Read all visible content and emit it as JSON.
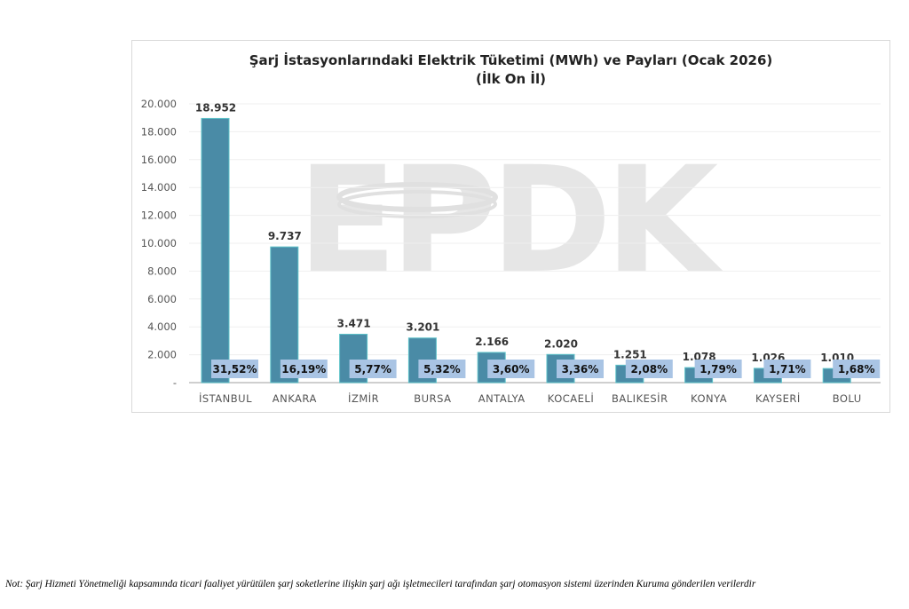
{
  "chart_data": {
    "type": "bar",
    "title": "Şarj İstasyonlarındaki Elektrik Tüketimi (MWh) ve Payları (Ocak 2026)",
    "subtitle": "(İlk On İl)",
    "xlabel": "",
    "ylabel": "",
    "ylim": [
      0,
      20000
    ],
    "yticks": [
      "-",
      "2.000",
      "4.000",
      "6.000",
      "8.000",
      "10.000",
      "12.000",
      "14.000",
      "16.000",
      "18.000",
      "20.000"
    ],
    "grid": true,
    "categories": [
      "İSTANBUL",
      "ANKARA",
      "İZMİR",
      "BURSA",
      "ANTALYA",
      "KOCAELİ",
      "BALIKESİR",
      "KONYA",
      "KAYSERİ",
      "BOLU"
    ],
    "values": [
      18952,
      9737,
      3471,
      3201,
      2166,
      2020,
      1251,
      1078,
      1026,
      1010
    ],
    "value_labels": [
      "18.952",
      "9.737",
      "3.471",
      "3.201",
      "2.166",
      "2.020",
      "1.251",
      "1.078",
      "1.026",
      "1.010"
    ],
    "share_labels": [
      "31,52%",
      "16,19%",
      "5,77%",
      "5,32%",
      "3,60%",
      "3,36%",
      "2,08%",
      "1,79%",
      "1,71%",
      "1,68%"
    ],
    "bar_color": "#4a8ba6",
    "share_box_color": "#a9c4e4",
    "watermark": "EPDK"
  },
  "note": "Not: Şarj Hizmeti Yönetmeliği kapsamında ticari faaliyet yürütülen şarj soketlerine ilişkin şarj ağı işletmecileri tarafından şarj otomasyon sistemi üzerinden Kuruma gönderilen verilerdir"
}
